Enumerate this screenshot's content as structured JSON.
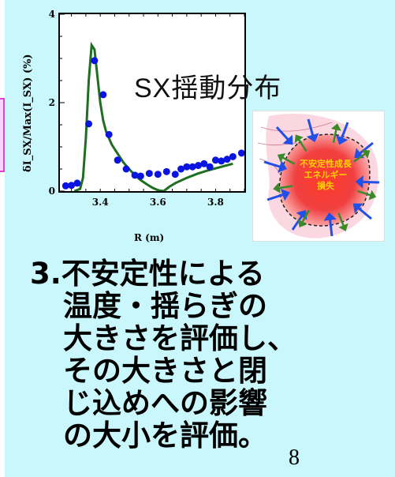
{
  "slide": {
    "title": "SX揺動分布",
    "page_number": "8",
    "body_lines": [
      "3.不安定性による",
      "温度・揺らぎの",
      "大きさを評価し、",
      "その大きさと閉",
      "じ込めへの影響",
      "の大小を評価。"
    ]
  },
  "inset": {
    "label_lines": [
      "不安定性成長",
      "エネルギー",
      "損失"
    ],
    "colors": {
      "blob": "#e8201e",
      "inward_arrows": "#2050e8",
      "outward_arrows": "#3a8a2a",
      "label": "#ffd000"
    }
  },
  "chart_data": {
    "type": "scatter",
    "xlabel": "R (m)",
    "ylabel": "δI_SX/Max(I_SX) (%)",
    "xlim": [
      3.26,
      3.9
    ],
    "ylim": [
      0,
      4
    ],
    "x_ticks": [
      "3.4",
      "3.6",
      "3.8"
    ],
    "y_ticks": [
      "0",
      "2",
      "4"
    ],
    "grid": false,
    "series": [
      {
        "kind": "points",
        "color": "#0a14e0",
        "x": [
          3.28,
          3.3,
          3.32,
          3.36,
          3.38,
          3.41,
          3.43,
          3.46,
          3.49,
          3.52,
          3.54,
          3.57,
          3.6,
          3.63,
          3.66,
          3.68,
          3.7,
          3.72,
          3.74,
          3.76,
          3.78,
          3.8,
          3.82,
          3.84,
          3.86,
          3.89
        ],
        "y": [
          0.12,
          0.13,
          0.18,
          1.52,
          2.95,
          2.18,
          1.28,
          0.7,
          0.5,
          0.36,
          0.34,
          0.4,
          0.38,
          0.44,
          0.38,
          0.5,
          0.55,
          0.55,
          0.58,
          0.62,
          0.55,
          0.7,
          0.68,
          0.72,
          0.78,
          0.86
        ]
      },
      {
        "kind": "line",
        "color": "#1f6e21",
        "x": [
          3.31,
          3.33,
          3.34,
          3.35,
          3.36,
          3.37,
          3.38,
          3.39,
          3.4,
          3.41,
          3.42,
          3.44,
          3.46,
          3.48,
          3.5,
          3.52,
          3.54,
          3.56,
          3.58,
          3.6,
          3.62,
          3.64,
          3.66,
          3.7,
          3.74,
          3.78,
          3.82,
          3.86
        ],
        "y": [
          0.0,
          0.05,
          0.3,
          1.2,
          2.5,
          3.3,
          3.2,
          2.6,
          2.0,
          1.6,
          1.35,
          1.05,
          0.85,
          0.65,
          0.5,
          0.36,
          0.25,
          0.16,
          0.08,
          0.02,
          0.0,
          0.1,
          0.18,
          0.3,
          0.4,
          0.48,
          0.55,
          0.62
        ]
      }
    ]
  }
}
